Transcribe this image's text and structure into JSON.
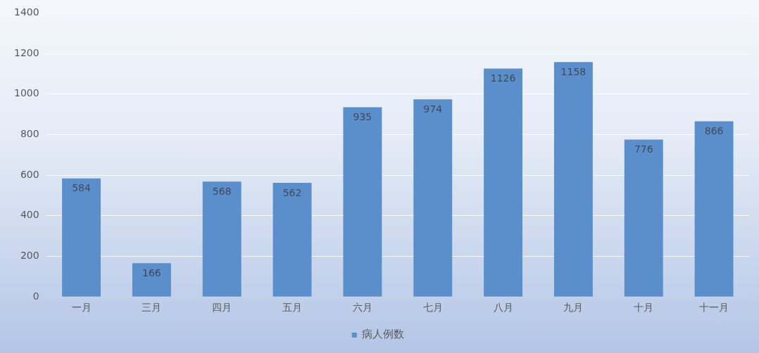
{
  "chart_data": {
    "type": "bar",
    "categories": [
      "一月",
      "三月",
      "四月",
      "五月",
      "六月",
      "七月",
      "八月",
      "九月",
      "十月",
      "十一月"
    ],
    "series": [
      {
        "name": "病人例数",
        "color": "#5b8fcb",
        "values": [
          584,
          166,
          568,
          562,
          935,
          974,
          1126,
          1158,
          776,
          866
        ]
      }
    ],
    "ylim": [
      0,
      1400
    ],
    "yticks": [
      0,
      200,
      400,
      600,
      800,
      1000,
      1200,
      1400
    ],
    "grid": "y",
    "legend": "bottom",
    "data_labels": true
  }
}
